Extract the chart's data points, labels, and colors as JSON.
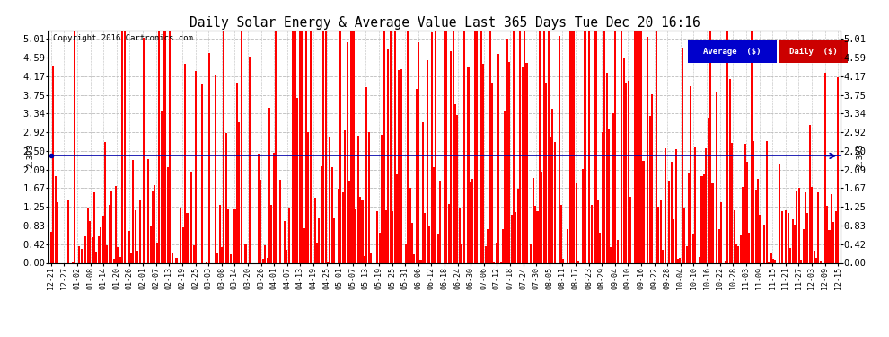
{
  "title": "Daily Solar Energy & Average Value Last 365 Days Tue Dec 20 16:16",
  "copyright": "Copyright 2016 Cartronics.com",
  "average_value": 2.393,
  "average_label": "2.393",
  "yticks": [
    0.0,
    0.42,
    0.83,
    1.25,
    1.67,
    2.09,
    2.5,
    2.92,
    3.34,
    3.75,
    4.17,
    4.59,
    5.01
  ],
  "ylim": [
    0.0,
    5.2
  ],
  "bar_color": "#FF0000",
  "average_line_color": "#0000AA",
  "plot_bg_color": "#FFFFFF",
  "fig_bg_color": "#FFFFFF",
  "grid_color": "#BBBBBB",
  "legend_avg_bg": "#0000CC",
  "legend_daily_bg": "#CC0000",
  "legend_avg_text": "Average  ($)",
  "legend_daily_text": "Daily  ($)",
  "num_bars": 365,
  "x_tick_labels": [
    "12-21",
    "12-27",
    "01-02",
    "01-08",
    "01-14",
    "01-20",
    "01-26",
    "02-01",
    "02-07",
    "02-13",
    "02-19",
    "02-25",
    "03-03",
    "03-08",
    "03-14",
    "03-20",
    "03-26",
    "04-01",
    "04-07",
    "04-13",
    "04-19",
    "04-25",
    "05-01",
    "05-07",
    "05-13",
    "05-19",
    "05-25",
    "05-31",
    "06-06",
    "06-12",
    "06-18",
    "06-24",
    "06-30",
    "07-06",
    "07-12",
    "07-18",
    "07-24",
    "07-30",
    "08-05",
    "08-11",
    "08-17",
    "08-23",
    "08-29",
    "09-04",
    "09-10",
    "09-16",
    "09-22",
    "09-28",
    "10-04",
    "10-10",
    "10-16",
    "10-22",
    "10-28",
    "11-03",
    "11-09",
    "11-15",
    "11-21",
    "11-27",
    "12-03",
    "12-09",
    "12-15"
  ]
}
